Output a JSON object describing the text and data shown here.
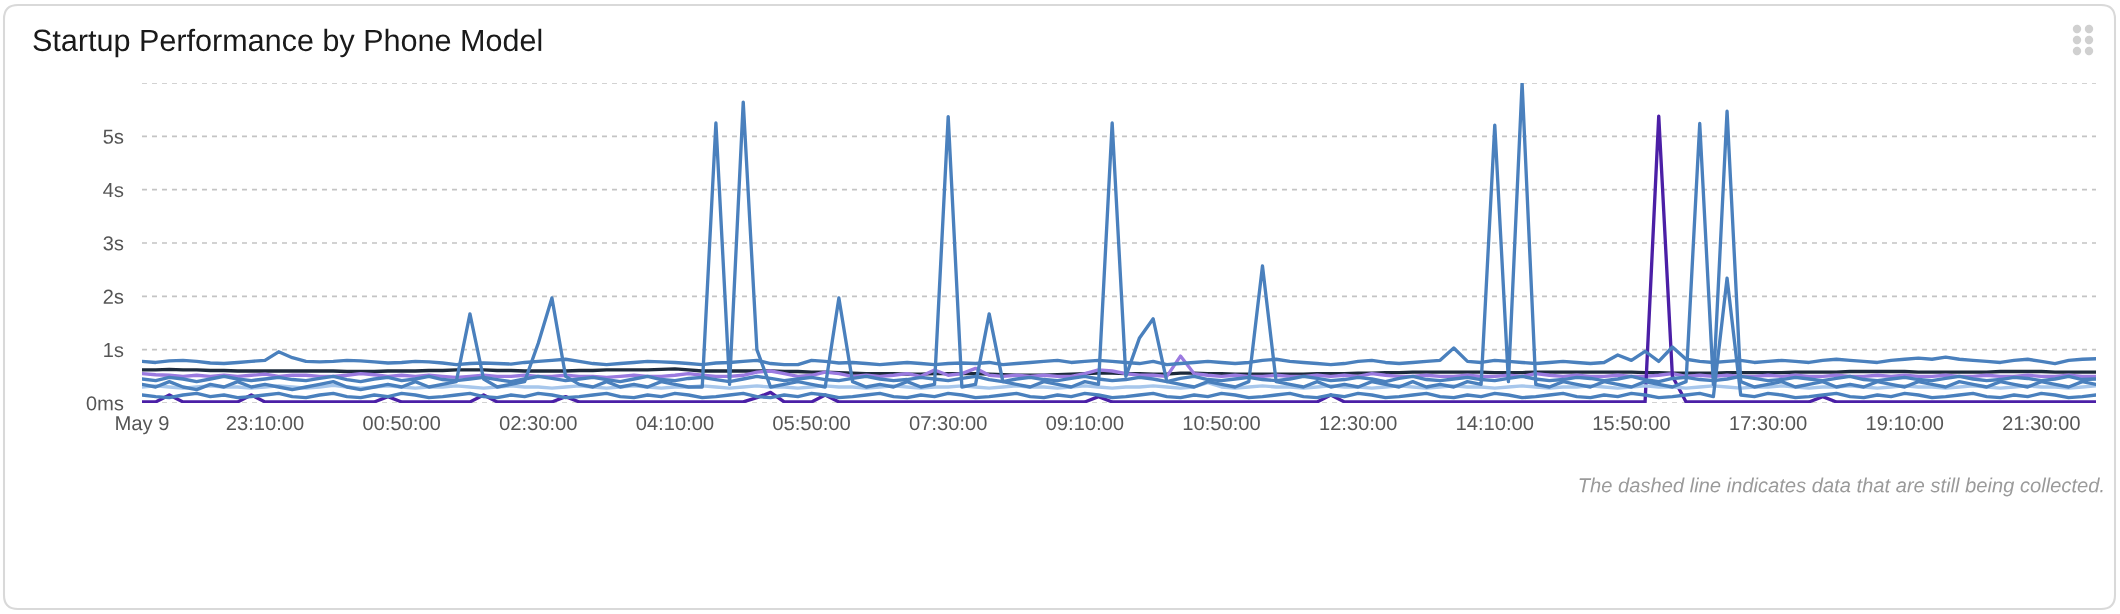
{
  "chart_data": {
    "type": "line",
    "title": "Startup Performance by Phone Model",
    "annotations": [
      "The dashed line indicates data that are still being collected."
    ],
    "categories": [
      "May 9",
      null,
      null,
      null,
      null,
      null,
      null,
      null,
      null,
      "23:10:00",
      null,
      null,
      null,
      null,
      null,
      null,
      null,
      null,
      null,
      "00:50:00",
      null,
      null,
      null,
      null,
      null,
      null,
      null,
      null,
      null,
      "02:30:00",
      null,
      null,
      null,
      null,
      null,
      null,
      null,
      null,
      null,
      "04:10:00",
      null,
      null,
      null,
      null,
      null,
      null,
      null,
      null,
      null,
      "05:50:00",
      null,
      null,
      null,
      null,
      null,
      null,
      null,
      null,
      null,
      "07:30:00",
      null,
      null,
      null,
      null,
      null,
      null,
      null,
      null,
      null,
      "09:10:00",
      null,
      null,
      null,
      null,
      null,
      null,
      null,
      null,
      null,
      "10:50:00",
      null,
      null,
      null,
      null,
      null,
      null,
      null,
      null,
      null,
      "12:30:00",
      null,
      null,
      null,
      null,
      null,
      null,
      null,
      null,
      null,
      "14:10:00",
      null,
      null,
      null,
      null,
      null,
      null,
      null,
      null,
      null,
      "15:50:00",
      null,
      null,
      null,
      null,
      null,
      null,
      null,
      null,
      null,
      "17:30:00",
      null,
      null,
      null,
      null,
      null,
      null,
      null,
      null,
      null,
      "19:10:00",
      null,
      null,
      null,
      null,
      null,
      null,
      null,
      null,
      null,
      "21:30:00",
      null,
      null,
      null,
      null
    ],
    "series": [
      {
        "color": "#1c2a3b",
        "values": [
          0.62,
          0.62,
          0.63,
          0.62,
          0.62,
          0.61,
          0.61,
          0.6,
          0.6,
          0.6,
          0.6,
          0.6,
          0.6,
          0.6,
          0.6,
          0.59,
          0.59,
          0.59,
          0.6,
          0.6,
          0.6,
          0.61,
          0.61,
          0.62,
          0.62,
          0.62,
          0.61,
          0.61,
          0.6,
          0.6,
          0.6,
          0.6,
          0.61,
          0.61,
          0.62,
          0.62,
          0.62,
          0.62,
          0.63,
          0.64,
          0.62,
          0.6,
          0.6,
          0.6,
          0.6,
          0.6,
          0.6,
          0.59,
          0.59,
          0.58,
          0.58,
          0.57,
          0.56,
          0.55,
          0.55,
          0.55,
          0.54,
          0.54,
          0.55,
          0.55,
          0.55,
          0.55,
          0.54,
          0.53,
          0.52,
          0.52,
          0.52,
          0.53,
          0.54,
          0.55,
          0.56,
          0.56,
          0.55,
          0.55,
          0.54,
          0.54,
          0.56,
          0.56,
          0.55,
          0.55,
          0.54,
          0.54,
          0.54,
          0.54,
          0.54,
          0.54,
          0.55,
          0.55,
          0.55,
          0.56,
          0.56,
          0.57,
          0.57,
          0.58,
          0.58,
          0.58,
          0.58,
          0.58,
          0.58,
          0.57,
          0.57,
          0.57,
          0.58,
          0.58,
          0.58,
          0.58,
          0.58,
          0.58,
          0.58,
          0.58,
          0.57,
          0.57,
          0.56,
          0.56,
          0.56,
          0.56,
          0.57,
          0.57,
          0.57,
          0.57,
          0.57,
          0.58,
          0.58,
          0.58,
          0.58,
          0.59,
          0.59,
          0.59,
          0.59,
          0.59,
          0.58,
          0.58,
          0.58,
          0.58,
          0.58,
          0.58,
          0.59,
          0.59,
          0.59,
          0.59,
          0.58,
          0.58,
          0.58,
          0.58
        ]
      },
      {
        "color": "#9b7ae0",
        "values": [
          0.55,
          0.53,
          0.52,
          0.5,
          0.52,
          0.5,
          0.52,
          0.5,
          0.52,
          0.54,
          0.5,
          0.52,
          0.52,
          0.5,
          0.5,
          0.52,
          0.55,
          0.53,
          0.5,
          0.52,
          0.5,
          0.52,
          0.5,
          0.48,
          0.5,
          0.52,
          0.5,
          0.5,
          0.52,
          0.5,
          0.5,
          0.52,
          0.5,
          0.5,
          0.48,
          0.5,
          0.52,
          0.5,
          0.5,
          0.52,
          0.55,
          0.52,
          0.5,
          0.5,
          0.52,
          0.58,
          0.6,
          0.55,
          0.5,
          0.52,
          0.58,
          0.55,
          0.5,
          0.52,
          0.5,
          0.52,
          0.55,
          0.5,
          0.62,
          0.52,
          0.55,
          0.65,
          0.52,
          0.5,
          0.52,
          0.5,
          0.52,
          0.5,
          0.5,
          0.55,
          0.62,
          0.6,
          0.55,
          0.52,
          0.52,
          0.5,
          0.88,
          0.55,
          0.52,
          0.5,
          0.52,
          0.5,
          0.5,
          0.52,
          0.5,
          0.5,
          0.52,
          0.5,
          0.52,
          0.5,
          0.55,
          0.52,
          0.5,
          0.5,
          0.52,
          0.5,
          0.5,
          0.52,
          0.5,
          0.5,
          0.52,
          0.5,
          0.55,
          0.52,
          0.5,
          0.52,
          0.5,
          0.5,
          0.52,
          0.5,
          0.5,
          0.52,
          0.55,
          0.5,
          0.52,
          0.5,
          0.52,
          0.5,
          0.5,
          0.52,
          0.5,
          0.52,
          0.5,
          0.5,
          0.52,
          0.5,
          0.5,
          0.52,
          0.5,
          0.52,
          0.5,
          0.5,
          0.52,
          0.5,
          0.5,
          0.52,
          0.5,
          0.5,
          0.52,
          0.5,
          0.5,
          0.52,
          0.5,
          0.5
        ]
      },
      {
        "color": "#4b1fa6",
        "values": [
          0.02,
          0.02,
          0.15,
          0.02,
          0.02,
          0.02,
          0.02,
          0.02,
          0.15,
          0.02,
          0.02,
          0.02,
          0.02,
          0.02,
          0.02,
          0.02,
          0.02,
          0.02,
          0.12,
          0.02,
          0.02,
          0.02,
          0.02,
          0.02,
          0.02,
          0.15,
          0.02,
          0.02,
          0.02,
          0.02,
          0.02,
          0.12,
          0.02,
          0.02,
          0.02,
          0.02,
          0.02,
          0.02,
          0.02,
          0.02,
          0.02,
          0.02,
          0.02,
          0.02,
          0.02,
          0.1,
          0.2,
          0.02,
          0.02,
          0.02,
          0.15,
          0.02,
          0.02,
          0.02,
          0.02,
          0.02,
          0.02,
          0.02,
          0.02,
          0.02,
          0.02,
          0.02,
          0.02,
          0.02,
          0.02,
          0.02,
          0.02,
          0.02,
          0.02,
          0.02,
          0.12,
          0.02,
          0.02,
          0.02,
          0.02,
          0.02,
          0.02,
          0.02,
          0.02,
          0.02,
          0.02,
          0.02,
          0.02,
          0.02,
          0.02,
          0.02,
          0.02,
          0.15,
          0.02,
          0.02,
          0.02,
          0.02,
          0.02,
          0.02,
          0.02,
          0.02,
          0.02,
          0.02,
          0.02,
          0.02,
          0.02,
          0.02,
          0.02,
          0.02,
          0.02,
          0.02,
          0.02,
          0.02,
          0.02,
          0.02,
          0.02,
          5.38,
          0.5,
          0.02,
          0.02,
          0.02,
          0.02,
          0.02,
          0.02,
          0.02,
          0.02,
          0.02,
          0.02,
          0.12,
          0.02,
          0.02,
          0.02,
          0.02,
          0.02,
          0.02,
          0.02,
          0.02,
          0.02,
          0.02,
          0.02,
          0.02,
          0.02,
          0.02,
          0.02,
          0.02,
          0.02,
          0.02,
          0.02,
          0.02
        ]
      },
      {
        "color": "#a7c7ec",
        "values": [
          0.3,
          0.32,
          0.3,
          0.28,
          0.3,
          0.32,
          0.3,
          0.3,
          0.28,
          0.3,
          0.32,
          0.3,
          0.28,
          0.3,
          0.33,
          0.3,
          0.28,
          0.3,
          0.32,
          0.3,
          0.28,
          0.3,
          0.3,
          0.32,
          0.3,
          0.28,
          0.3,
          0.32,
          0.3,
          0.3,
          0.28,
          0.3,
          0.32,
          0.3,
          0.28,
          0.3,
          0.32,
          0.3,
          0.28,
          0.3,
          0.3,
          0.32,
          0.3,
          0.28,
          0.3,
          0.32,
          0.3,
          0.3,
          0.28,
          0.3,
          0.32,
          0.3,
          0.3,
          0.28,
          0.3,
          0.32,
          0.3,
          0.28,
          0.3,
          0.3,
          0.32,
          0.3,
          0.28,
          0.3,
          0.32,
          0.3,
          0.3,
          0.28,
          0.3,
          0.32,
          0.3,
          0.28,
          0.3,
          0.3,
          0.32,
          0.3,
          0.28,
          0.3,
          0.38,
          0.3,
          0.28,
          0.3,
          0.32,
          0.3,
          0.3,
          0.28,
          0.3,
          0.32,
          0.3,
          0.3,
          0.28,
          0.3,
          0.32,
          0.3,
          0.28,
          0.3,
          0.32,
          0.3,
          0.3,
          0.28,
          0.3,
          0.32,
          0.3,
          0.28,
          0.3,
          0.3,
          0.32,
          0.3,
          0.28,
          0.3,
          0.32,
          0.3,
          0.3,
          0.28,
          0.3,
          0.32,
          0.3,
          0.28,
          0.3,
          0.3,
          0.32,
          0.3,
          0.28,
          0.3,
          0.3,
          0.32,
          0.3,
          0.28,
          0.3,
          0.32,
          0.3,
          0.3,
          0.28,
          0.3,
          0.32,
          0.3,
          0.28,
          0.3,
          0.32,
          0.3,
          0.3,
          0.28,
          0.3,
          0.32
        ]
      },
      {
        "color": "#4a80bd",
        "values": [
          0.15,
          0.12,
          0.1,
          0.15,
          0.18,
          0.12,
          0.15,
          0.1,
          0.12,
          0.15,
          0.18,
          0.12,
          0.1,
          0.15,
          0.18,
          0.12,
          0.1,
          0.15,
          0.12,
          0.18,
          0.15,
          0.1,
          0.12,
          0.15,
          0.18,
          0.12,
          0.1,
          0.15,
          0.12,
          0.18,
          0.15,
          0.1,
          0.12,
          0.15,
          0.18,
          0.12,
          0.1,
          0.15,
          0.12,
          0.18,
          0.15,
          0.1,
          0.12,
          0.15,
          0.18,
          0.12,
          0.1,
          0.15,
          0.12,
          0.18,
          0.15,
          0.1,
          0.12,
          0.15,
          0.18,
          0.12,
          0.1,
          0.15,
          0.12,
          0.18,
          0.15,
          0.1,
          0.12,
          0.15,
          0.18,
          0.12,
          0.1,
          0.15,
          0.12,
          0.18,
          0.15,
          0.1,
          0.12,
          0.15,
          0.18,
          0.12,
          0.1,
          0.15,
          0.12,
          0.18,
          0.15,
          0.1,
          0.12,
          0.15,
          0.18,
          0.12,
          0.1,
          0.15,
          0.12,
          0.18,
          0.15,
          0.1,
          0.12,
          0.15,
          0.18,
          0.12,
          0.1,
          0.15,
          0.12,
          0.18,
          0.15,
          0.1,
          0.12,
          0.15,
          0.18,
          0.12,
          0.1,
          0.15,
          0.12,
          0.18,
          0.15,
          0.1,
          0.12,
          0.15,
          0.18,
          0.12,
          2.34,
          0.15,
          0.12,
          0.18,
          0.15,
          0.1,
          0.12,
          0.15,
          0.18,
          0.12,
          0.1,
          0.15,
          0.12,
          0.18,
          0.15,
          0.1,
          0.12,
          0.15,
          0.18,
          0.12,
          0.1,
          0.15,
          0.12,
          0.18,
          0.15,
          0.1,
          0.12,
          0.15
        ]
      },
      {
        "color": "#4a80bd",
        "values": [
          0.45,
          0.42,
          0.48,
          0.45,
          0.4,
          0.45,
          0.5,
          0.45,
          0.42,
          0.45,
          0.48,
          0.44,
          0.42,
          0.46,
          0.5,
          0.44,
          0.4,
          0.45,
          0.48,
          0.42,
          0.45,
          0.5,
          0.44,
          0.42,
          0.45,
          0.48,
          0.44,
          0.4,
          0.45,
          0.5,
          0.46,
          0.42,
          0.45,
          0.48,
          0.44,
          0.4,
          0.45,
          0.5,
          0.44,
          0.42,
          0.46,
          0.48,
          0.44,
          0.4,
          0.45,
          0.5,
          0.46,
          0.42,
          0.45,
          0.48,
          0.44,
          0.42,
          0.46,
          0.5,
          0.45,
          0.42,
          0.44,
          0.48,
          0.45,
          0.42,
          0.46,
          0.5,
          0.44,
          0.4,
          0.45,
          0.48,
          0.44,
          0.42,
          0.46,
          0.5,
          0.45,
          0.42,
          0.44,
          0.48,
          0.45,
          0.4,
          0.46,
          0.5,
          0.44,
          0.42,
          0.45,
          0.48,
          0.44,
          0.42,
          0.45,
          0.5,
          0.46,
          0.42,
          0.44,
          0.48,
          0.45,
          0.4,
          0.46,
          0.5,
          0.44,
          0.42,
          0.45,
          0.48,
          0.44,
          0.42,
          0.46,
          0.5,
          0.45,
          0.42,
          0.44,
          0.48,
          0.46,
          0.42,
          0.45,
          0.5,
          0.44,
          0.4,
          0.46,
          0.48,
          0.44,
          0.42,
          0.45,
          0.5,
          0.46,
          0.42,
          0.44,
          0.48,
          0.45,
          0.42,
          0.46,
          0.5,
          0.44,
          0.42,
          0.45,
          0.48,
          0.44,
          0.42,
          0.46,
          0.5,
          0.45,
          0.42,
          0.44,
          0.48,
          0.46,
          0.42,
          0.45,
          0.5,
          0.44,
          0.45
        ]
      },
      {
        "color": "#4a80bd",
        "values": [
          0.78,
          0.76,
          0.79,
          0.8,
          0.78,
          0.75,
          0.74,
          0.76,
          0.78,
          0.8,
          0.96,
          0.85,
          0.78,
          0.77,
          0.78,
          0.8,
          0.79,
          0.77,
          0.75,
          0.76,
          0.78,
          0.77,
          0.75,
          0.72,
          0.74,
          0.75,
          0.74,
          0.73,
          0.76,
          0.78,
          0.8,
          0.82,
          0.78,
          0.74,
          0.72,
          0.74,
          0.76,
          0.78,
          0.77,
          0.76,
          0.74,
          0.72,
          0.75,
          0.76,
          0.78,
          0.8,
          0.74,
          0.72,
          0.72,
          0.8,
          0.78,
          0.75,
          0.76,
          0.74,
          0.72,
          0.74,
          0.76,
          0.74,
          0.72,
          0.74,
          0.75,
          0.74,
          0.76,
          0.72,
          0.74,
          0.76,
          0.78,
          0.8,
          0.76,
          0.78,
          0.8,
          0.78,
          0.76,
          0.74,
          0.78,
          0.72,
          0.74,
          0.76,
          0.78,
          0.76,
          0.74,
          0.76,
          0.8,
          0.82,
          0.78,
          0.76,
          0.74,
          0.72,
          0.74,
          0.78,
          0.8,
          0.76,
          0.74,
          0.76,
          0.78,
          0.8,
          1.03,
          0.78,
          0.76,
          0.8,
          0.78,
          0.76,
          0.74,
          0.76,
          0.78,
          0.76,
          0.74,
          0.76,
          0.9,
          0.8,
          0.97,
          0.78,
          1.05,
          0.82,
          0.78,
          0.76,
          0.78,
          0.8,
          0.76,
          0.78,
          0.8,
          0.78,
          0.76,
          0.8,
          0.82,
          0.8,
          0.78,
          0.76,
          0.8,
          0.82,
          0.84,
          0.82,
          0.86,
          0.82,
          0.8,
          0.78,
          0.76,
          0.8,
          0.82,
          0.78,
          0.74,
          0.8,
          0.82,
          0.83
        ]
      },
      {
        "color": "#4a80bd",
        "values": [
          0.35,
          0.3,
          0.4,
          0.3,
          0.25,
          0.35,
          0.3,
          0.4,
          0.3,
          0.35,
          0.3,
          0.25,
          0.3,
          0.35,
          0.4,
          0.3,
          0.25,
          0.3,
          0.35,
          0.3,
          0.4,
          0.3,
          0.35,
          0.4,
          1.67,
          0.45,
          0.3,
          0.35,
          0.4,
          1.12,
          1.97,
          0.5,
          0.35,
          0.3,
          0.4,
          0.3,
          0.35,
          0.3,
          0.4,
          0.35,
          0.3,
          0.3,
          5.25,
          0.35,
          5.64,
          1.0,
          0.3,
          0.35,
          0.4,
          0.35,
          0.3,
          1.97,
          0.4,
          0.3,
          0.35,
          0.3,
          0.4,
          0.3,
          0.35,
          5.37,
          0.3,
          0.35,
          1.67,
          0.4,
          0.35,
          0.3,
          0.4,
          0.35,
          0.3,
          0.4,
          0.35,
          5.25,
          0.5,
          1.22,
          1.58,
          0.4,
          0.35,
          0.3,
          0.4,
          0.35,
          0.3,
          0.4,
          2.57,
          0.4,
          0.35,
          0.3,
          0.4,
          0.3,
          0.35,
          0.3,
          0.4,
          0.35,
          0.3,
          0.4,
          0.3,
          0.35,
          0.3,
          0.4,
          0.35,
          5.21,
          0.4,
          6.0,
          0.35,
          0.3,
          0.4,
          0.35,
          0.3,
          0.4,
          0.35,
          0.3,
          0.4,
          0.35,
          0.3,
          0.4,
          5.24,
          0.35,
          5.47,
          0.4,
          0.3,
          0.35,
          0.4,
          0.3,
          0.35,
          0.4,
          0.3,
          0.35,
          0.3,
          0.4,
          0.35,
          0.3,
          0.4,
          0.35,
          0.3,
          0.4,
          0.35,
          0.3,
          0.4,
          0.35,
          0.3,
          0.4,
          0.35,
          0.3,
          0.4,
          0.35
        ]
      }
    ],
    "ylim": [
      0,
      6
    ],
    "yticks": [
      {
        "value": 0,
        "label": "0ms"
      },
      {
        "value": 1,
        "label": "1s"
      },
      {
        "value": 2,
        "label": "2s"
      },
      {
        "value": 3,
        "label": "3s"
      },
      {
        "value": 4,
        "label": "4s"
      },
      {
        "value": 5,
        "label": "5s"
      },
      {
        "value": 6,
        "label": null
      }
    ],
    "grid": "y"
  }
}
